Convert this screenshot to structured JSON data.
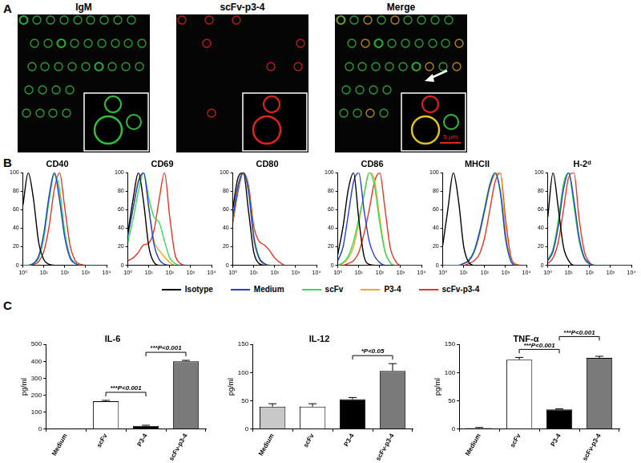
{
  "panel_labels": [
    "A",
    "B",
    "C"
  ],
  "images": {
    "titles": [
      "IgM",
      "scFv-p3-4",
      "Merge"
    ],
    "scale_bar": "5 μm"
  },
  "chart_data": [
    {
      "type": "line",
      "title": "CD40",
      "log": "x",
      "grid": false,
      "legend": "bottom",
      "x": [
        1,
        1.778,
        3.162,
        5.623,
        10,
        17.78,
        31.62,
        56.23,
        100,
        177.8,
        316.2,
        562.3,
        1000,
        1778,
        3162,
        5623,
        10000
      ],
      "xlim": [
        1,
        10000
      ],
      "xticks": [
        {
          "value": 1,
          "label": "10⁰"
        },
        {
          "value": 10,
          "label": "10¹"
        },
        {
          "value": 100,
          "label": "10²"
        },
        {
          "value": 1000,
          "label": "10³"
        },
        {
          "value": 10000,
          "label": "10⁴"
        }
      ],
      "ylim": [
        0,
        100
      ],
      "yticks": [
        0,
        20,
        40,
        60,
        80,
        100
      ],
      "series": [
        {
          "name": "Isotype",
          "color": "#000000",
          "values": [
            65,
            100,
            72,
            25,
            6,
            1,
            0,
            0,
            0,
            0,
            0,
            0,
            0,
            0,
            0,
            0,
            0
          ]
        },
        {
          "name": "Medium",
          "color": "#1f3fe0",
          "values": [
            0,
            0,
            2,
            10,
            35,
            75,
            100,
            70,
            30,
            8,
            2,
            0,
            0,
            0,
            0,
            0,
            0
          ]
        },
        {
          "name": "scFv",
          "color": "#33dd55",
          "values": [
            0,
            0,
            2,
            8,
            30,
            70,
            98,
            82,
            36,
            10,
            2,
            0,
            0,
            0,
            0,
            0,
            0
          ]
        },
        {
          "name": "P3-4",
          "color": "#f5a623",
          "values": [
            0,
            0,
            2,
            8,
            32,
            72,
            100,
            76,
            32,
            9,
            2,
            0,
            0,
            0,
            0,
            0,
            0
          ]
        },
        {
          "name": "scFv-p3-4",
          "color": "#ee3322",
          "values": [
            0,
            0,
            1,
            4,
            15,
            42,
            82,
            100,
            62,
            22,
            5,
            1,
            0,
            0,
            0,
            0,
            0
          ]
        }
      ]
    },
    {
      "type": "line",
      "title": "CD69",
      "log": "x",
      "grid": false,
      "legend": "bottom",
      "x": [
        1,
        1.778,
        3.162,
        5.623,
        10,
        17.78,
        31.62,
        56.23,
        100,
        177.8,
        316.2,
        562.3,
        1000,
        1778,
        3162,
        5623,
        10000
      ],
      "xlim": [
        1,
        10000
      ],
      "xticks": [
        {
          "value": 1,
          "label": "10⁰"
        },
        {
          "value": 10,
          "label": "10¹"
        },
        {
          "value": 100,
          "label": "10²"
        },
        {
          "value": 1000,
          "label": "10³"
        },
        {
          "value": 10000,
          "label": "10⁴"
        }
      ],
      "ylim": [
        0,
        100
      ],
      "yticks": [
        0,
        20,
        40,
        60,
        80,
        100
      ],
      "series": [
        {
          "name": "Isotype",
          "color": "#000000",
          "values": [
            35,
            72,
            100,
            68,
            20,
            3,
            0,
            0,
            0,
            0,
            0,
            0,
            0,
            0,
            0,
            0,
            0
          ]
        },
        {
          "name": "Medium",
          "color": "#1f3fe0",
          "values": [
            32,
            62,
            90,
            100,
            62,
            22,
            6,
            1,
            0,
            0,
            0,
            0,
            0,
            0,
            0,
            0,
            0
          ]
        },
        {
          "name": "scFv",
          "color": "#33dd55",
          "values": [
            25,
            50,
            80,
            100,
            72,
            52,
            46,
            26,
            8,
            2,
            0,
            0,
            0,
            0,
            0,
            0,
            0
          ]
        },
        {
          "name": "P3-4",
          "color": "#f5a623",
          "values": [
            33,
            62,
            92,
            100,
            60,
            26,
            16,
            9,
            3,
            0,
            0,
            0,
            0,
            0,
            0,
            0,
            0
          ]
        },
        {
          "name": "scFv-p3-4",
          "color": "#ee3322",
          "values": [
            5,
            8,
            14,
            22,
            24,
            38,
            72,
            100,
            52,
            12,
            2,
            0,
            0,
            0,
            0,
            0,
            0
          ]
        }
      ]
    },
    {
      "type": "line",
      "title": "CD80",
      "log": "x",
      "grid": false,
      "legend": "bottom",
      "x": [
        1,
        1.778,
        3.162,
        5.623,
        10,
        17.78,
        31.62,
        56.23,
        100,
        177.8,
        316.2,
        562.3,
        1000,
        1778,
        3162,
        5623,
        10000
      ],
      "xlim": [
        1,
        10000
      ],
      "xticks": [
        {
          "value": 1,
          "label": "10⁰"
        },
        {
          "value": 10,
          "label": "10¹"
        },
        {
          "value": 100,
          "label": "10²"
        },
        {
          "value": 1000,
          "label": "10³"
        },
        {
          "value": 10000,
          "label": "10⁴"
        }
      ],
      "ylim": [
        0,
        100
      ],
      "yticks": [
        0,
        20,
        40,
        60,
        80,
        100
      ],
      "series": [
        {
          "name": "Isotype",
          "color": "#000000",
          "values": [
            62,
            95,
            100,
            58,
            14,
            2,
            0,
            0,
            0,
            0,
            0,
            0,
            0,
            0,
            0,
            0,
            0
          ]
        },
        {
          "name": "Medium",
          "color": "#1f3fe0",
          "values": [
            52,
            86,
            100,
            80,
            30,
            8,
            2,
            0,
            0,
            0,
            0,
            0,
            0,
            0,
            0,
            0,
            0
          ]
        },
        {
          "name": "scFv",
          "color": "#33dd55",
          "values": [
            50,
            84,
            100,
            82,
            32,
            9,
            2,
            0,
            0,
            0,
            0,
            0,
            0,
            0,
            0,
            0,
            0
          ]
        },
        {
          "name": "P3-4",
          "color": "#f5a623",
          "values": [
            54,
            88,
            100,
            78,
            28,
            7,
            1,
            0,
            0,
            0,
            0,
            0,
            0,
            0,
            0,
            0,
            0
          ]
        },
        {
          "name": "scFv-p3-4",
          "color": "#ee3322",
          "values": [
            46,
            80,
            100,
            86,
            42,
            26,
            22,
            16,
            8,
            3,
            0,
            0,
            0,
            0,
            0,
            0,
            0
          ]
        }
      ]
    },
    {
      "type": "line",
      "title": "CD86",
      "log": "x",
      "grid": false,
      "legend": "bottom",
      "x": [
        1,
        1.778,
        3.162,
        5.623,
        10,
        17.78,
        31.62,
        56.23,
        100,
        177.8,
        316.2,
        562.3,
        1000,
        1778,
        3162,
        5623,
        10000
      ],
      "xlim": [
        1,
        10000
      ],
      "xticks": [
        {
          "value": 1,
          "label": "10⁰"
        },
        {
          "value": 10,
          "label": "10¹"
        },
        {
          "value": 100,
          "label": "10²"
        },
        {
          "value": 1000,
          "label": "10³"
        },
        {
          "value": 10000,
          "label": "10⁴"
        }
      ],
      "ylim": [
        0,
        100
      ],
      "yticks": [
        0,
        20,
        40,
        60,
        80,
        100
      ],
      "series": [
        {
          "name": "Isotype",
          "color": "#000000",
          "values": [
            12,
            42,
            82,
            100,
            50,
            10,
            1,
            0,
            0,
            0,
            0,
            0,
            0,
            0,
            0,
            0,
            0
          ]
        },
        {
          "name": "Medium",
          "color": "#1f3fe0",
          "values": [
            5,
            20,
            55,
            90,
            100,
            60,
            26,
            10,
            3,
            0,
            0,
            0,
            0,
            0,
            0,
            0,
            0
          ]
        },
        {
          "name": "scFv",
          "color": "#33dd55",
          "values": [
            0,
            3,
            10,
            26,
            50,
            76,
            100,
            86,
            46,
            15,
            3,
            0,
            0,
            0,
            0,
            0,
            0
          ]
        },
        {
          "name": "P3-4",
          "color": "#f5a623",
          "values": [
            0,
            2,
            8,
            20,
            46,
            76,
            100,
            92,
            52,
            16,
            3,
            0,
            0,
            0,
            0,
            0,
            0
          ]
        },
        {
          "name": "scFv-p3-4",
          "color": "#ee3322",
          "values": [
            0,
            0,
            2,
            5,
            14,
            34,
            60,
            90,
            100,
            62,
            20,
            5,
            0,
            0,
            0,
            0,
            0
          ]
        }
      ]
    },
    {
      "type": "line",
      "title": "MHCII",
      "log": "x",
      "grid": false,
      "legend": "bottom",
      "x": [
        1,
        1.778,
        3.162,
        5.623,
        10,
        17.78,
        31.62,
        56.23,
        100,
        177.8,
        316.2,
        562.3,
        1000,
        1778,
        3162,
        5623,
        10000
      ],
      "xlim": [
        1,
        10000
      ],
      "xticks": [
        {
          "value": 1,
          "label": "10⁰"
        },
        {
          "value": 10,
          "label": "10¹"
        },
        {
          "value": 100,
          "label": "10²"
        },
        {
          "value": 1000,
          "label": "10³"
        },
        {
          "value": 10000,
          "label": "10⁴"
        }
      ],
      "ylim": [
        0,
        100
      ],
      "yticks": [
        0,
        20,
        40,
        60,
        80,
        100
      ],
      "series": [
        {
          "name": "Isotype",
          "color": "#000000",
          "values": [
            22,
            62,
            100,
            70,
            20,
            3,
            0,
            0,
            0,
            0,
            0,
            0,
            0,
            0,
            0,
            0,
            0
          ]
        },
        {
          "name": "Medium",
          "color": "#1f3fe0",
          "values": [
            0,
            0,
            0,
            0,
            2,
            5,
            15,
            35,
            60,
            86,
            100,
            80,
            30,
            5,
            0,
            0,
            0
          ]
        },
        {
          "name": "scFv",
          "color": "#33dd55",
          "values": [
            0,
            0,
            0,
            0,
            2,
            6,
            16,
            36,
            62,
            88,
            100,
            78,
            28,
            5,
            0,
            0,
            0
          ]
        },
        {
          "name": "P3-4",
          "color": "#f5a623",
          "values": [
            0,
            0,
            0,
            0,
            2,
            5,
            14,
            32,
            58,
            84,
            98,
            100,
            36,
            6,
            0,
            0,
            0
          ]
        },
        {
          "name": "scFv-p3-4",
          "color": "#ee3322",
          "values": [
            0,
            0,
            0,
            0,
            0,
            2,
            5,
            12,
            30,
            60,
            90,
            100,
            50,
            10,
            1,
            0,
            0
          ]
        }
      ]
    },
    {
      "type": "line",
      "title": "H-2ᵈ",
      "log": "x",
      "grid": false,
      "legend": "bottom",
      "x": [
        1,
        1.778,
        3.162,
        5.623,
        10,
        17.78,
        31.62,
        56.23,
        100,
        177.8,
        316.2,
        562.3,
        1000,
        1778,
        3162,
        5623,
        10000
      ],
      "xlim": [
        1,
        10000
      ],
      "xticks": [
        {
          "value": 1,
          "label": "10⁰"
        },
        {
          "value": 10,
          "label": "10¹"
        },
        {
          "value": 100,
          "label": "10²"
        },
        {
          "value": 1000,
          "label": "10³"
        },
        {
          "value": 10000,
          "label": "10⁴"
        }
      ],
      "ylim": [
        0,
        100
      ],
      "yticks": [
        0,
        20,
        40,
        60,
        80,
        100
      ],
      "series": [
        {
          "name": "Isotype",
          "color": "#000000",
          "values": [
            52,
            100,
            62,
            20,
            5,
            0,
            0,
            0,
            0,
            0,
            0,
            0,
            0,
            0,
            0,
            0,
            0
          ]
        },
        {
          "name": "Medium",
          "color": "#1f3fe0",
          "values": [
            5,
            15,
            42,
            82,
            100,
            70,
            30,
            8,
            2,
            0,
            0,
            0,
            0,
            0,
            0,
            0,
            0
          ]
        },
        {
          "name": "scFv",
          "color": "#33dd55",
          "values": [
            6,
            18,
            48,
            88,
            100,
            64,
            26,
            7,
            1,
            0,
            0,
            0,
            0,
            0,
            0,
            0,
            0
          ]
        },
        {
          "name": "P3-4",
          "color": "#f5a623",
          "values": [
            5,
            16,
            44,
            84,
            100,
            68,
            28,
            8,
            2,
            0,
            0,
            0,
            0,
            0,
            0,
            0,
            0
          ]
        },
        {
          "name": "scFv-p3-4",
          "color": "#ee3322",
          "values": [
            2,
            8,
            25,
            60,
            95,
            100,
            50,
            15,
            3,
            0,
            0,
            0,
            0,
            0,
            0,
            0,
            0
          ]
        }
      ]
    },
    {
      "type": "bar",
      "title": "IL-6",
      "y_label": "pg/ml",
      "grid": false,
      "categories": [
        "Medium",
        "scFv",
        "P3-4",
        "scFv-p3-4"
      ],
      "values": [
        0,
        165,
        20,
        400
      ],
      "errors": [
        0,
        5,
        3,
        6
      ],
      "colors": [
        "#ffffff",
        "#ffffff",
        "#000000",
        "#7a7a7a"
      ],
      "ylim": [
        0,
        500
      ],
      "yticks": [
        0,
        100,
        200,
        300,
        400,
        500
      ],
      "annotations": [
        {
          "from": "scFv",
          "to": "P3-4",
          "text": "***P<0.001"
        },
        {
          "from": "P3-4",
          "to": "scFv-p3-4",
          "text": "***P<0.001"
        }
      ]
    },
    {
      "type": "bar",
      "title": "IL-12",
      "y_label": "pg/ml",
      "grid": false,
      "categories": [
        "Medium",
        "scFv",
        "P3-4",
        "scFv-p3-4"
      ],
      "values": [
        40,
        40,
        53,
        103
      ],
      "errors": [
        5,
        5,
        3,
        13
      ],
      "colors": [
        "#c8c8c8",
        "#ffffff",
        "#000000",
        "#7a7a7a"
      ],
      "ylim": [
        0,
        150
      ],
      "yticks": [
        0,
        50,
        100,
        150
      ],
      "annotations": [
        {
          "from": "P3-4",
          "to": "scFv-p3-4",
          "text": "*P<0.05"
        }
      ]
    },
    {
      "type": "bar",
      "title": "TNF-α",
      "y_label": "pg/ml",
      "grid": false,
      "categories": [
        "Medium",
        "scFv",
        "P3-4",
        "scFv-p3-4"
      ],
      "values": [
        2,
        123,
        35,
        126
      ],
      "errors": [
        1,
        4,
        1,
        3
      ],
      "colors": [
        "#ffffff",
        "#ffffff",
        "#000000",
        "#7a7a7a"
      ],
      "ylim": [
        0,
        150
      ],
      "yticks": [
        0,
        50,
        100,
        150
      ],
      "annotations": [
        {
          "from": "scFv",
          "to": "P3-4",
          "text": "***P<0.001"
        },
        {
          "from": "P3-4",
          "to": "scFv-p3-4",
          "text": "***P<0.001"
        }
      ]
    }
  ]
}
